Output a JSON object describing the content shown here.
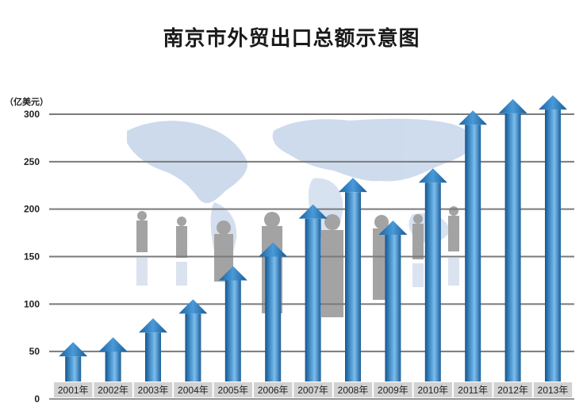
{
  "chart_data": {
    "type": "bar",
    "title": "南京市外贸出口总额示意图",
    "ylabel": "（亿美元）",
    "categories": [
      "2001年",
      "2002年",
      "2003年",
      "2004年",
      "2005年",
      "2006年",
      "2007年",
      "2008年",
      "2009年",
      "2010年",
      "2011年",
      "2012年",
      "2013年"
    ],
    "values": [
      60,
      65,
      85,
      105,
      140,
      165,
      205,
      233,
      188,
      243,
      304,
      316,
      320
    ],
    "ylim": [
      0,
      300
    ],
    "yticks": [
      0,
      50,
      100,
      150,
      200,
      250,
      300
    ],
    "grid": true,
    "legend": "none",
    "colors": {
      "bar_dark": "#1a5f9c",
      "bar_mid": "#3d8fd0",
      "bar_light": "#7fbde9",
      "grid": "#7a7a7a",
      "cat_bg": "#d2d2d2"
    }
  }
}
